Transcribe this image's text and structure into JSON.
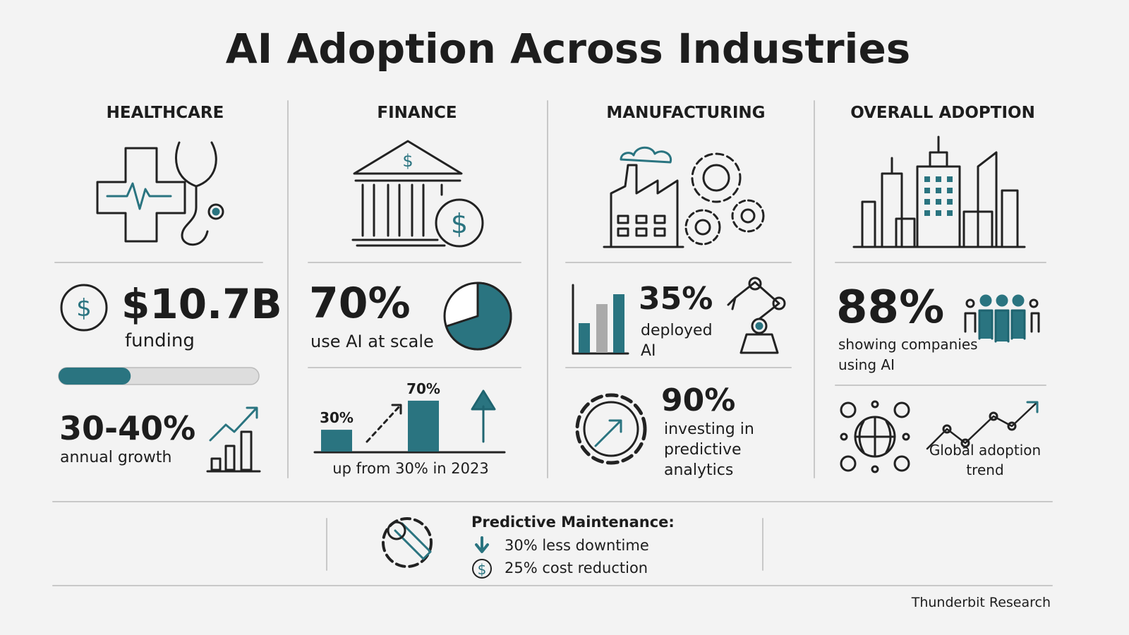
{
  "title": "AI Adoption Across Industries",
  "healthcare": {
    "heading": "HEALTHCARE",
    "stat": "$10.7B",
    "stat_label": "funding",
    "progress": 36,
    "growth": "30-40%",
    "growth_label": "annual growth"
  },
  "finance": {
    "heading": "FINANCE",
    "stat": "70%",
    "stat_label": "use AI at scale",
    "pie_value": 70,
    "chart": {
      "type": "bar",
      "values": [
        30,
        70
      ],
      "value_labels": [
        "30%",
        "70%"
      ],
      "caption": "up from 30% in 2023"
    }
  },
  "manufacturing": {
    "heading": "MANUFACTURING",
    "stat": "35%",
    "stat_label": "deployed AI",
    "stat2": "90%",
    "stat2_label": "investing in predictive analytics"
  },
  "overall": {
    "heading": "OVERALL ADOPTION",
    "stat": "88%",
    "stat_label": "showing companies using AI",
    "trend_label": "Global adoption trend"
  },
  "footer": {
    "heading": "Predictive Maintenance:",
    "items": [
      "30% less downtime",
      "25% cost reduction"
    ]
  },
  "source": "Thunderbit Research"
}
